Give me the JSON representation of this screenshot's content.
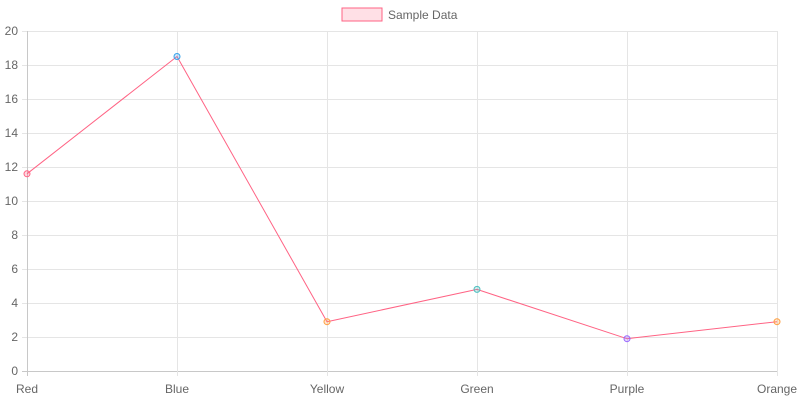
{
  "chart_data": {
    "type": "line",
    "title": "",
    "xlabel": "",
    "ylabel": "",
    "categories": [
      "Red",
      "Blue",
      "Yellow",
      "Green",
      "Purple",
      "Orange"
    ],
    "series": [
      {
        "name": "Sample Data",
        "values": [
          11.6,
          18.5,
          2.9,
          4.8,
          1.9,
          2.9
        ],
        "line_color": "#ff6384",
        "fill_color": "#ffe0e6",
        "point_colors": [
          "#ff6384",
          "#36a2eb",
          "#ff9f40",
          "#4bc0c0",
          "#9966ff",
          "#ff9f40"
        ]
      }
    ],
    "ylim": [
      0,
      20
    ],
    "yticks": [
      0,
      2,
      4,
      6,
      8,
      10,
      12,
      14,
      16,
      18,
      20
    ],
    "grid": true,
    "legend": "top-center"
  },
  "colors": {
    "grid": "#e5e5e5",
    "axis": "#c8c8c8",
    "text": "#666666"
  }
}
